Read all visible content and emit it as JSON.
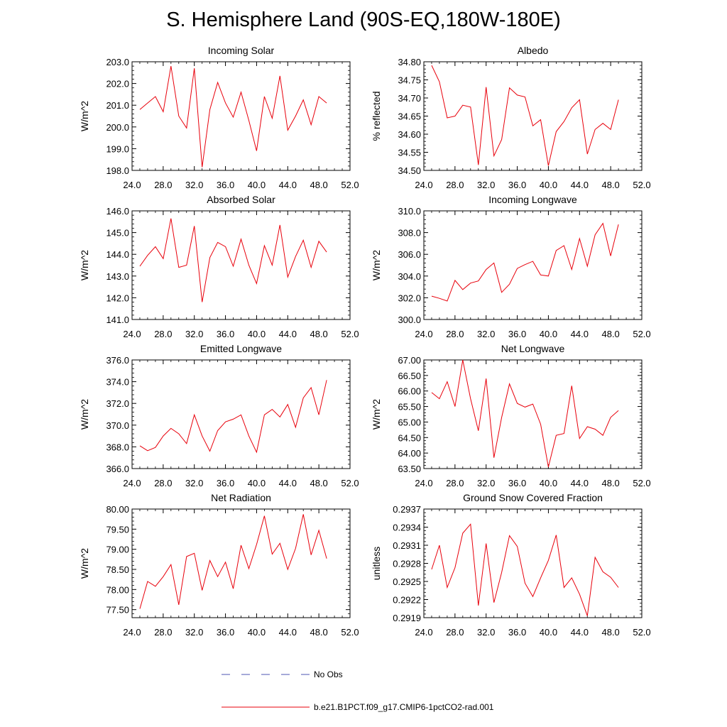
{
  "title": "S. Hemisphere Land (90S-EQ,180W-180E)",
  "legend": {
    "obs_label": "No Obs",
    "obs_color": "#4d55b3",
    "model_label": "b.e21.B1PCT.f09_g17.CMIP6-1pctCO2-rad.001",
    "model_color": "#e8000b"
  },
  "chart_data": [
    {
      "type": "line",
      "title": "Incoming Solar",
      "ylabel": "W/m^2",
      "xlim": [
        24,
        52
      ],
      "xticks": [
        "24.0",
        "28.0",
        "32.0",
        "36.0",
        "40.0",
        "44.0",
        "48.0",
        "52.0"
      ],
      "ylim": [
        198,
        203
      ],
      "yticks": [
        "198.0",
        "199.0",
        "200.0",
        "201.0",
        "202.0",
        "203.0"
      ],
      "x": [
        25,
        26,
        27,
        28,
        29,
        30,
        31,
        32,
        33,
        34,
        35,
        36,
        37,
        38,
        39,
        40,
        41,
        42,
        43,
        44,
        45,
        46,
        47,
        48,
        49
      ],
      "series": [
        {
          "values": [
            200.8,
            201.1,
            201.4,
            200.7,
            202.8,
            200.5,
            199.95,
            202.7,
            198.15,
            200.8,
            202.05,
            201.1,
            200.45,
            201.6,
            200.3,
            198.9,
            201.4,
            200.4,
            202.35,
            199.85,
            200.5,
            201.25,
            200.1,
            201.4,
            201.1
          ]
        }
      ]
    },
    {
      "type": "line",
      "title": "Albedo",
      "ylabel": "% reflected",
      "xlim": [
        24,
        52
      ],
      "xticks": [
        "24.0",
        "28.0",
        "32.0",
        "36.0",
        "40.0",
        "44.0",
        "48.0",
        "52.0"
      ],
      "ylim": [
        34.5,
        34.8
      ],
      "yticks": [
        "34.50",
        "34.55",
        "34.60",
        "34.65",
        "34.70",
        "34.75",
        "34.80"
      ],
      "x": [
        25,
        26,
        27,
        28,
        29,
        30,
        31,
        32,
        33,
        34,
        35,
        36,
        37,
        38,
        39,
        40,
        41,
        42,
        43,
        44,
        45,
        46,
        47,
        48,
        49
      ],
      "series": [
        {
          "values": [
            34.79,
            34.745,
            34.645,
            34.65,
            34.68,
            34.675,
            34.515,
            34.73,
            34.54,
            34.585,
            34.728,
            34.708,
            34.703,
            34.623,
            34.64,
            34.513,
            34.607,
            34.635,
            34.673,
            34.695,
            34.545,
            34.613,
            34.63,
            34.613,
            34.695
          ]
        }
      ]
    },
    {
      "type": "line",
      "title": "Absorbed Solar",
      "ylabel": "W/m^2",
      "xlim": [
        24,
        52
      ],
      "xticks": [
        "24.0",
        "28.0",
        "32.0",
        "36.0",
        "40.0",
        "44.0",
        "48.0",
        "52.0"
      ],
      "ylim": [
        141,
        146
      ],
      "yticks": [
        "141.0",
        "142.0",
        "143.0",
        "144.0",
        "145.0",
        "146.0"
      ],
      "x": [
        25,
        26,
        27,
        28,
        29,
        30,
        31,
        32,
        33,
        34,
        35,
        36,
        37,
        38,
        39,
        40,
        41,
        42,
        43,
        44,
        45,
        46,
        47,
        48,
        49
      ],
      "series": [
        {
          "values": [
            143.45,
            143.95,
            144.35,
            143.8,
            145.65,
            143.4,
            143.5,
            145.3,
            141.8,
            143.85,
            144.55,
            144.35,
            143.45,
            144.7,
            143.5,
            142.65,
            144.4,
            143.5,
            145.35,
            142.95,
            143.9,
            144.65,
            143.4,
            144.6,
            144.1
          ]
        }
      ]
    },
    {
      "type": "line",
      "title": "Incoming Longwave",
      "ylabel": "W/m^2",
      "xlim": [
        24,
        52
      ],
      "xticks": [
        "24.0",
        "28.0",
        "32.0",
        "36.0",
        "40.0",
        "44.0",
        "48.0",
        "52.0"
      ],
      "ylim": [
        300,
        310
      ],
      "yticks": [
        "300.0",
        "302.0",
        "304.0",
        "306.0",
        "308.0",
        "310.0"
      ],
      "x": [
        25,
        26,
        27,
        28,
        29,
        30,
        31,
        32,
        33,
        34,
        35,
        36,
        37,
        38,
        39,
        40,
        41,
        42,
        43,
        44,
        45,
        46,
        47,
        48,
        49
      ],
      "series": [
        {
          "values": [
            302.15,
            301.95,
            301.7,
            303.6,
            302.75,
            303.35,
            303.55,
            304.6,
            305.2,
            302.5,
            303.25,
            304.7,
            305.05,
            305.35,
            304.1,
            304.0,
            306.35,
            306.8,
            304.6,
            307.45,
            304.9,
            307.8,
            308.85,
            305.85,
            308.75
          ]
        }
      ]
    },
    {
      "type": "line",
      "title": "Emitted Longwave",
      "ylabel": "W/m^2",
      "xlim": [
        24,
        52
      ],
      "xticks": [
        "24.0",
        "28.0",
        "32.0",
        "36.0",
        "40.0",
        "44.0",
        "48.0",
        "52.0"
      ],
      "ylim": [
        366,
        376
      ],
      "yticks": [
        "366.0",
        "368.0",
        "370.0",
        "372.0",
        "374.0",
        "376.0"
      ],
      "x": [
        25,
        26,
        27,
        28,
        29,
        30,
        31,
        32,
        33,
        34,
        35,
        36,
        37,
        38,
        39,
        40,
        41,
        42,
        43,
        44,
        45,
        46,
        47,
        48,
        49
      ],
      "series": [
        {
          "values": [
            368.1,
            367.65,
            367.95,
            369.0,
            369.7,
            369.2,
            368.3,
            370.95,
            369.0,
            367.6,
            369.5,
            370.3,
            370.55,
            370.95,
            369.0,
            367.5,
            370.95,
            371.45,
            370.75,
            371.9,
            369.8,
            372.5,
            373.45,
            370.95,
            374.15
          ]
        }
      ]
    },
    {
      "type": "line",
      "title": "Net Longwave",
      "ylabel": "W/m^2",
      "xlim": [
        24,
        52
      ],
      "xticks": [
        "24.0",
        "28.0",
        "32.0",
        "36.0",
        "40.0",
        "44.0",
        "48.0",
        "52.0"
      ],
      "ylim": [
        63.5,
        67
      ],
      "yticks": [
        "63.50",
        "64.00",
        "64.50",
        "65.00",
        "65.50",
        "66.00",
        "66.50",
        "67.00"
      ],
      "x": [
        25,
        26,
        27,
        28,
        29,
        30,
        31,
        32,
        33,
        34,
        35,
        36,
        37,
        38,
        39,
        40,
        41,
        42,
        43,
        44,
        45,
        46,
        47,
        48,
        49
      ],
      "series": [
        {
          "values": [
            65.95,
            65.75,
            66.3,
            65.5,
            67.0,
            65.75,
            64.72,
            66.4,
            63.85,
            65.15,
            66.23,
            65.6,
            65.48,
            65.58,
            64.93,
            63.55,
            64.57,
            64.63,
            66.17,
            64.47,
            64.85,
            64.77,
            64.57,
            65.15,
            65.37
          ]
        }
      ]
    },
    {
      "type": "line",
      "title": "Net Radiation",
      "ylabel": "W/m^2",
      "xlim": [
        24,
        52
      ],
      "xticks": [
        "24.0",
        "28.0",
        "32.0",
        "36.0",
        "40.0",
        "44.0",
        "48.0",
        "52.0"
      ],
      "ylim": [
        77.3,
        80.0
      ],
      "yticks": [
        "77.50",
        "78.00",
        "78.50",
        "79.00",
        "79.50",
        "80.00"
      ],
      "x": [
        25,
        26,
        27,
        28,
        29,
        30,
        31,
        32,
        33,
        34,
        35,
        36,
        37,
        38,
        39,
        40,
        41,
        42,
        43,
        44,
        45,
        46,
        47,
        48,
        49
      ],
      "series": [
        {
          "values": [
            77.52,
            78.2,
            78.08,
            78.32,
            78.62,
            77.62,
            78.82,
            78.9,
            77.98,
            78.72,
            78.32,
            78.68,
            78.02,
            79.1,
            78.52,
            79.12,
            79.83,
            78.88,
            79.15,
            78.5,
            79.02,
            79.87,
            78.86,
            79.47,
            78.77
          ]
        }
      ]
    },
    {
      "type": "line",
      "title": "Ground Snow Covered Fraction",
      "ylabel": "unitless",
      "xlim": [
        24,
        52
      ],
      "xticks": [
        "24.0",
        "28.0",
        "32.0",
        "36.0",
        "40.0",
        "44.0",
        "48.0",
        "52.0"
      ],
      "ylim": [
        0.2919,
        0.2937
      ],
      "yticks": [
        "0.2919",
        "0.2922",
        "0.2925",
        "0.2928",
        "0.2931",
        "0.2934",
        "0.2937"
      ],
      "x": [
        25,
        26,
        27,
        28,
        29,
        30,
        31,
        32,
        33,
        34,
        35,
        36,
        37,
        38,
        39,
        40,
        41,
        42,
        43,
        44,
        45,
        46,
        47,
        48,
        49
      ],
      "series": [
        {
          "values": [
            0.2927,
            0.2931,
            0.2924,
            0.29273,
            0.2933,
            0.29345,
            0.2921,
            0.29313,
            0.29215,
            0.29265,
            0.29326,
            0.29308,
            0.29247,
            0.29225,
            0.29256,
            0.29285,
            0.29327,
            0.2924,
            0.29256,
            0.29229,
            0.29193,
            0.2929,
            0.29266,
            0.29257,
            0.2924
          ]
        }
      ]
    }
  ]
}
